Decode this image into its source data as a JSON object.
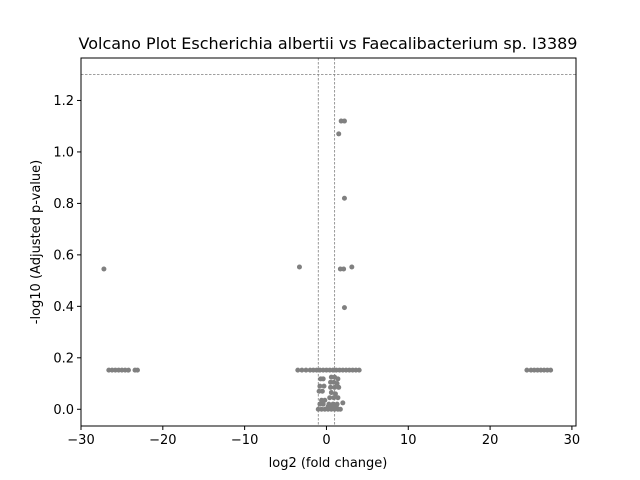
{
  "chart_data": {
    "type": "scatter",
    "title": "Volcano Plot Escherichia albertii vs Faecalibacterium sp. I3389",
    "xlabel": "log2 (fold change)",
    "ylabel": "-log10 (Adjusted p-value)",
    "xlim": [
      -30,
      30.5
    ],
    "ylim": [
      -0.065,
      1.365
    ],
    "xticks": [
      -30,
      -20,
      -10,
      0,
      10,
      20,
      30
    ],
    "xtick_labels": [
      "−30",
      "−20",
      "−10",
      "0",
      "10",
      "20",
      "30"
    ],
    "yticks": [
      0.0,
      0.2,
      0.4,
      0.6,
      0.8,
      1.0,
      1.2
    ],
    "ytick_labels": [
      "0.0",
      "0.2",
      "0.4",
      "0.6",
      "0.8",
      "1.0",
      "1.2"
    ],
    "grid": false,
    "point_color": "#808080",
    "threshold_color": "#808080",
    "thresholds": {
      "vertical_x": [
        -1,
        1
      ],
      "horizontal_y": 1.301
    },
    "series": [
      {
        "points": [
          [
            1.8,
            1.12
          ],
          [
            2.2,
            1.12
          ],
          [
            1.5,
            1.07
          ],
          [
            2.2,
            0.82
          ],
          [
            -27.2,
            0.545
          ],
          [
            -3.3,
            0.553
          ],
          [
            1.7,
            0.545
          ],
          [
            2.1,
            0.545
          ],
          [
            3.1,
            0.553
          ],
          [
            2.2,
            0.395
          ],
          [
            -26.6,
            0.152
          ],
          [
            -26.2,
            0.152
          ],
          [
            -25.8,
            0.152
          ],
          [
            -25.4,
            0.152
          ],
          [
            -25.0,
            0.152
          ],
          [
            -24.6,
            0.152
          ],
          [
            -24.2,
            0.152
          ],
          [
            -23.4,
            0.152
          ],
          [
            -23.1,
            0.152
          ],
          [
            24.5,
            0.152
          ],
          [
            25.0,
            0.152
          ],
          [
            25.4,
            0.152
          ],
          [
            25.8,
            0.152
          ],
          [
            26.2,
            0.152
          ],
          [
            26.6,
            0.152
          ],
          [
            27.0,
            0.152
          ],
          [
            27.4,
            0.152
          ],
          [
            -3.5,
            0.152
          ],
          [
            -3.0,
            0.152
          ],
          [
            -2.5,
            0.152
          ],
          [
            -2.0,
            0.152
          ],
          [
            -1.6,
            0.152
          ],
          [
            -1.2,
            0.152
          ],
          [
            -0.8,
            0.152
          ],
          [
            -0.4,
            0.152
          ],
          [
            0.0,
            0.152
          ],
          [
            0.4,
            0.152
          ],
          [
            0.8,
            0.152
          ],
          [
            1.2,
            0.152
          ],
          [
            1.6,
            0.152
          ],
          [
            2.0,
            0.152
          ],
          [
            2.4,
            0.152
          ],
          [
            2.8,
            0.152
          ],
          [
            3.2,
            0.152
          ],
          [
            3.6,
            0.152
          ],
          [
            4.0,
            0.152
          ],
          [
            -0.7,
            0.118
          ],
          [
            -0.4,
            0.118
          ],
          [
            0.6,
            0.125
          ],
          [
            1.0,
            0.125
          ],
          [
            1.4,
            0.118
          ],
          [
            0.5,
            0.105
          ],
          [
            0.9,
            0.105
          ],
          [
            1.3,
            0.1
          ],
          [
            -0.8,
            0.09
          ],
          [
            -0.3,
            0.09
          ],
          [
            0.5,
            0.085
          ],
          [
            1.0,
            0.085
          ],
          [
            1.5,
            0.085
          ],
          [
            -0.9,
            0.07
          ],
          [
            -0.5,
            0.07
          ],
          [
            0.6,
            0.065
          ],
          [
            1.1,
            0.06
          ],
          [
            0.4,
            0.045
          ],
          [
            0.9,
            0.045
          ],
          [
            1.4,
            0.045
          ],
          [
            -0.6,
            0.035
          ],
          [
            -0.2,
            0.035
          ],
          [
            -0.8,
            0.02
          ],
          [
            -0.4,
            0.02
          ],
          [
            0.3,
            0.02
          ],
          [
            0.8,
            0.02
          ],
          [
            1.3,
            0.02
          ],
          [
            2.0,
            0.025
          ],
          [
            -1.0,
            0.0
          ],
          [
            -0.6,
            0.0
          ],
          [
            -0.2,
            0.0
          ],
          [
            0.2,
            0.0
          ],
          [
            0.6,
            0.0
          ],
          [
            1.0,
            0.0
          ],
          [
            1.4,
            0.0
          ],
          [
            1.7,
            0.0
          ],
          [
            0.2,
            0.01
          ],
          [
            0.7,
            0.01
          ],
          [
            1.2,
            0.01
          ]
        ]
      }
    ]
  }
}
